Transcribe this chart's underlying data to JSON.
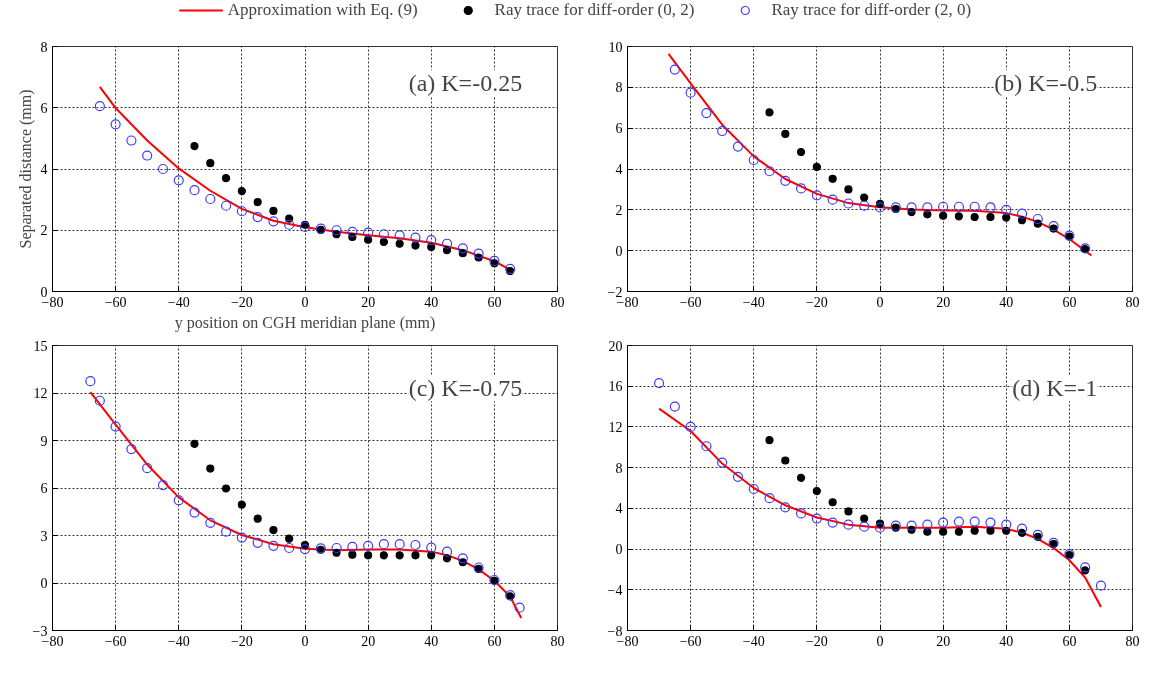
{
  "chart_data": [
    {
      "type": "scatter",
      "ylabel": "Separated distance (mm)",
      "xlabel": "y position on CGH meridian plane (mm)",
      "annotations": [
        "(a) K=-0.25"
      ],
      "xlim": [
        -80,
        80
      ],
      "xticks": [
        -80,
        -60,
        -40,
        -20,
        0,
        20,
        40,
        60,
        80
      ],
      "ylim": [
        0,
        8
      ],
      "yticks": [
        0,
        2,
        4,
        6,
        8
      ],
      "grid": true,
      "legend": "top",
      "series": [
        {
          "name": "Approximation with Eq. (9)",
          "type": "line",
          "color": "#ff0000",
          "marker": "none",
          "x": [
            -65,
            -60,
            -50,
            -40,
            -30,
            -20,
            -10,
            0,
            10,
            20,
            30,
            40,
            50,
            60,
            65
          ],
          "values": [
            6.68,
            5.99,
            4.93,
            4.02,
            3.29,
            2.7,
            2.31,
            2.1,
            1.95,
            1.84,
            1.74,
            1.59,
            1.35,
            0.99,
            0.71
          ]
        },
        {
          "name": "Ray trace for diff-order (0, 2)",
          "color": "#000000",
          "marker": "circle",
          "x": [
            -35,
            -30,
            -25,
            -20,
            -15,
            -10,
            -5,
            0,
            5,
            10,
            15,
            20,
            25,
            30,
            35,
            40,
            45,
            50,
            55,
            60,
            65
          ],
          "values": [
            4.75,
            4.19,
            3.7,
            3.28,
            2.92,
            2.63,
            2.38,
            2.18,
            2.01,
            1.87,
            1.78,
            1.69,
            1.62,
            1.56,
            1.5,
            1.45,
            1.35,
            1.25,
            1.11,
            0.92,
            0.67
          ]
        },
        {
          "name": "Ray trace for diff-order (2, 0)",
          "color": "#3b3bff",
          "marker": "circle",
          "x": [
            -65,
            -60,
            -55,
            -50,
            -45,
            -40,
            -35,
            -30,
            -25,
            -20,
            -15,
            -10,
            -5,
            0,
            5,
            10,
            15,
            20,
            25,
            30,
            35,
            40,
            45,
            50,
            55,
            60,
            65
          ],
          "values": [
            6.05,
            5.46,
            4.93,
            4.44,
            4.0,
            3.63,
            3.31,
            3.02,
            2.8,
            2.62,
            2.43,
            2.29,
            2.18,
            2.11,
            2.05,
            2.0,
            1.95,
            1.92,
            1.87,
            1.83,
            1.76,
            1.68,
            1.56,
            1.41,
            1.24,
            1.0,
            0.74
          ]
        }
      ]
    },
    {
      "type": "scatter",
      "annotations": [
        "(b) K=-0.5"
      ],
      "xlim": [
        -80,
        80
      ],
      "xticks": [
        -80,
        -60,
        -40,
        -20,
        0,
        20,
        40,
        60,
        80
      ],
      "ylim": [
        -2,
        10
      ],
      "yticks": [
        -2,
        0,
        2,
        4,
        6,
        8,
        10
      ],
      "grid": true,
      "series": [
        {
          "type": "line",
          "color": "#ff0000",
          "marker": "none",
          "x": [
            -67,
            -60,
            -50,
            -40,
            -30,
            -20,
            -10,
            0,
            10,
            20,
            30,
            40,
            45,
            50,
            55,
            60,
            67
          ],
          "values": [
            9.64,
            8.19,
            6.17,
            4.62,
            3.51,
            2.78,
            2.33,
            2.13,
            2.02,
            1.97,
            1.95,
            1.84,
            1.66,
            1.41,
            1.03,
            0.57,
            -0.24
          ]
        },
        {
          "color": "#000000",
          "marker": "circle",
          "x": [
            -35,
            -30,
            -25,
            -20,
            -15,
            -10,
            -5,
            0,
            5,
            10,
            15,
            20,
            25,
            30,
            35,
            40,
            45,
            50,
            55,
            60,
            65
          ],
          "values": [
            6.77,
            5.72,
            4.83,
            4.1,
            3.52,
            3.0,
            2.6,
            2.29,
            2.04,
            1.89,
            1.78,
            1.71,
            1.68,
            1.65,
            1.65,
            1.62,
            1.49,
            1.32,
            1.08,
            0.69,
            0.08
          ]
        },
        {
          "color": "#3b3bff",
          "marker": "circle",
          "x": [
            -65,
            -60,
            -55,
            -50,
            -45,
            -40,
            -35,
            -30,
            -25,
            -20,
            -15,
            -10,
            -5,
            0,
            5,
            10,
            15,
            20,
            25,
            30,
            35,
            40,
            45,
            50,
            55,
            60,
            65
          ],
          "values": [
            8.87,
            7.74,
            6.74,
            5.86,
            5.1,
            4.44,
            3.89,
            3.42,
            3.05,
            2.71,
            2.5,
            2.31,
            2.2,
            2.12,
            2.12,
            2.12,
            2.12,
            2.15,
            2.15,
            2.15,
            2.12,
            2.0,
            1.81,
            1.55,
            1.2,
            0.74,
            0.11
          ]
        }
      ]
    },
    {
      "type": "scatter",
      "annotations": [
        "(c) K=-0.75"
      ],
      "xlim": [
        -80,
        80
      ],
      "xticks": [
        -80,
        -60,
        -40,
        -20,
        0,
        20,
        40,
        60,
        80
      ],
      "ylim": [
        -3,
        15
      ],
      "yticks": [
        -3,
        0,
        3,
        6,
        9,
        12,
        15
      ],
      "grid": true,
      "series": [
        {
          "type": "line",
          "color": "#ff0000",
          "marker": "none",
          "x": [
            -68,
            -60,
            -50,
            -40,
            -30,
            -20,
            -10,
            0,
            10,
            20,
            30,
            40,
            45,
            50,
            55,
            60,
            65,
            68.5
          ],
          "values": [
            12.05,
            10.0,
            7.48,
            5.41,
            3.96,
            3.03,
            2.45,
            2.17,
            2.07,
            2.12,
            2.12,
            1.98,
            1.75,
            1.4,
            0.86,
            0.14,
            -0.86,
            -2.21
          ]
        },
        {
          "color": "#000000",
          "marker": "circle",
          "x": [
            -35,
            -30,
            -25,
            -20,
            -15,
            -10,
            -5,
            0,
            5,
            10,
            15,
            20,
            25,
            30,
            35,
            40,
            45,
            50,
            55,
            60,
            65
          ],
          "values": [
            8.79,
            7.23,
            5.97,
            4.95,
            4.06,
            3.34,
            2.8,
            2.4,
            2.1,
            1.91,
            1.79,
            1.75,
            1.75,
            1.75,
            1.75,
            1.75,
            1.56,
            1.31,
            0.89,
            0.14,
            -0.84
          ]
        },
        {
          "color": "#3b3bff",
          "marker": "circle",
          "x": [
            -68,
            -65,
            -60,
            -55,
            -50,
            -45,
            -40,
            -35,
            -30,
            -25,
            -20,
            -15,
            -10,
            -5,
            0,
            5,
            10,
            15,
            20,
            25,
            30,
            35,
            40,
            45,
            50,
            55,
            60,
            65,
            68
          ],
          "values": [
            12.75,
            11.51,
            9.88,
            8.46,
            7.25,
            6.18,
            5.22,
            4.45,
            3.8,
            3.24,
            2.87,
            2.54,
            2.35,
            2.21,
            2.14,
            2.19,
            2.21,
            2.28,
            2.35,
            2.45,
            2.45,
            2.4,
            2.24,
            1.98,
            1.56,
            0.98,
            0.19,
            -0.77,
            -1.56
          ]
        }
      ]
    },
    {
      "type": "scatter",
      "annotations": [
        "(d) K=-1"
      ],
      "xlim": [
        -80,
        80
      ],
      "xticks": [
        -80,
        -60,
        -40,
        -20,
        0,
        20,
        40,
        60,
        80
      ],
      "ylim": [
        -8,
        20
      ],
      "yticks": [
        -8,
        -4,
        0,
        4,
        8,
        12,
        16,
        20
      ],
      "grid": true,
      "series": [
        {
          "type": "line",
          "color": "#ff0000",
          "marker": "none",
          "x": [
            -70,
            -60,
            -50,
            -40,
            -30,
            -20,
            -10,
            0,
            10,
            20,
            30,
            40,
            45,
            50,
            55,
            60,
            65,
            70
          ],
          "values": [
            13.8,
            11.6,
            8.4,
            6.0,
            4.3,
            3.1,
            2.4,
            2.1,
            2.1,
            2.1,
            2.2,
            2.0,
            1.6,
            1.0,
            0.1,
            -1.1,
            -2.8,
            -5.7
          ]
        },
        {
          "color": "#000000",
          "marker": "circle",
          "x": [
            -35,
            -30,
            -25,
            -20,
            -15,
            -10,
            -5,
            0,
            5,
            10,
            15,
            20,
            25,
            30,
            35,
            40,
            45,
            50,
            55,
            60,
            65
          ],
          "values": [
            10.7,
            8.7,
            7.0,
            5.7,
            4.6,
            3.7,
            3.0,
            2.5,
            2.1,
            1.9,
            1.7,
            1.7,
            1.7,
            1.8,
            1.8,
            1.8,
            1.6,
            1.2,
            0.5,
            -0.6,
            -2.1
          ]
        },
        {
          "color": "#3b3bff",
          "marker": "circle",
          "x": [
            -70,
            -65,
            -60,
            -55,
            -50,
            -45,
            -40,
            -35,
            -30,
            -25,
            -20,
            -15,
            -10,
            -5,
            0,
            5,
            10,
            15,
            20,
            25,
            30,
            35,
            40,
            45,
            50,
            55,
            60,
            65,
            70
          ],
          "values": [
            16.3,
            14.0,
            12.0,
            10.1,
            8.5,
            7.1,
            5.9,
            5.0,
            4.1,
            3.5,
            3.0,
            2.6,
            2.4,
            2.2,
            2.1,
            2.3,
            2.3,
            2.4,
            2.6,
            2.7,
            2.7,
            2.6,
            2.4,
            2.0,
            1.4,
            0.6,
            -0.5,
            -1.8,
            -3.6
          ]
        }
      ]
    }
  ]
}
